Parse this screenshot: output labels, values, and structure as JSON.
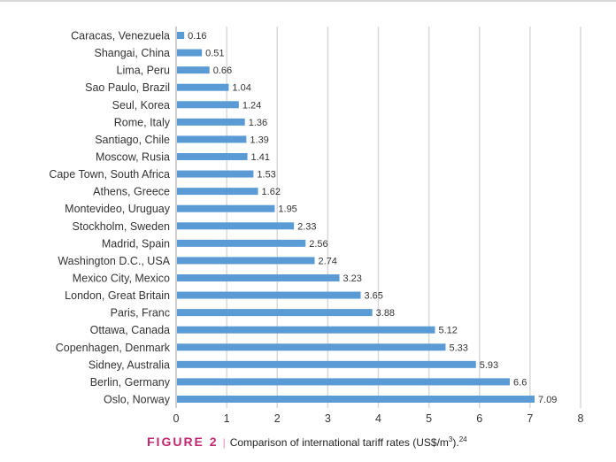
{
  "chart_data": {
    "type": "bar",
    "orientation": "horizontal",
    "categories": [
      "Caracas, Venezuela",
      "Shangai, China",
      "Lima, Peru",
      "Sao Paulo, Brazil",
      "Seul, Korea",
      "Rome, Italy",
      "Santiago, Chile",
      "Moscow, Rusia",
      "Cape Town, South Africa",
      "Athens, Greece",
      "Montevideo, Uruguay",
      "Stockholm, Sweden",
      "Madrid, Spain",
      "Washington D.C., USA",
      "Mexico City, Mexico",
      "London, Great Britain",
      "Paris, Franc",
      "Ottawa, Canada",
      "Copenhagen, Denmark",
      "Sidney, Australia",
      "Berlin, Germany",
      "Oslo, Norway"
    ],
    "values": [
      0.16,
      0.51,
      0.66,
      1.04,
      1.24,
      1.36,
      1.39,
      1.41,
      1.53,
      1.62,
      1.95,
      2.33,
      2.56,
      2.74,
      3.23,
      3.65,
      3.88,
      5.12,
      5.33,
      5.93,
      6.6,
      7.09
    ],
    "value_labels": [
      "0.16",
      "0.51",
      "0.66",
      "1.04",
      "1.24",
      "1.36",
      "1.39",
      "1.41",
      "1.53",
      "1.62",
      "1.95",
      "2.33",
      "2.56",
      "2.74",
      "3.23",
      "3.65",
      "3.88",
      "5.12",
      "5.33",
      "5.93",
      "6.6",
      "7.09"
    ],
    "xlim": [
      0,
      8
    ],
    "xticks": [
      "0",
      "1",
      "2",
      "3",
      "4",
      "5",
      "6",
      "7",
      "8"
    ],
    "grid": "vertical",
    "bar_color": "#5b9bd5",
    "legend": "none"
  },
  "caption": {
    "figure_label": "FIGURE 2",
    "separator": "|",
    "text": "Comparison of international tariff rates (US$/m",
    "superscript": "3",
    "text_end": ").",
    "reference": "24",
    "label_color": "#c2286f"
  }
}
